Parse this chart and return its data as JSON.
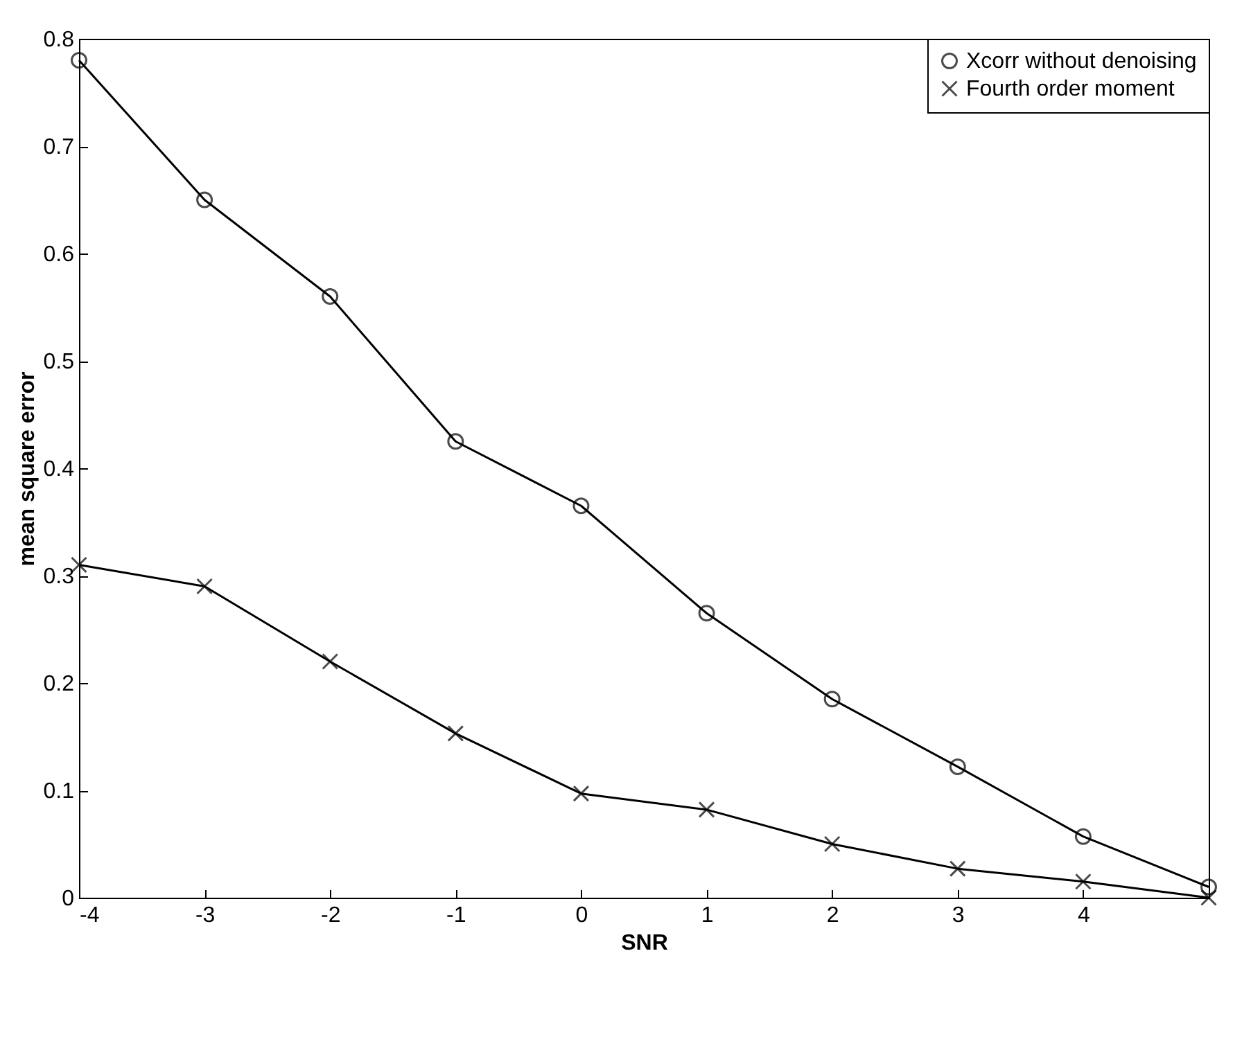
{
  "chart_data": {
    "type": "line",
    "xlabel": "SNR",
    "ylabel": "mean square error",
    "x": [
      -4,
      -3,
      -2,
      -1,
      0,
      1,
      2,
      3,
      4,
      5
    ],
    "series": [
      {
        "name": "Xcorr without denoising",
        "color": "#000000",
        "marker": "circle",
        "values": [
          0.78,
          0.65,
          0.56,
          0.425,
          0.365,
          0.265,
          0.185,
          0.122,
          0.057,
          0.01
        ]
      },
      {
        "name": "Fourth order moment",
        "color": "#000000",
        "marker": "cross",
        "values": [
          0.31,
          0.29,
          0.22,
          0.153,
          0.097,
          0.082,
          0.05,
          0.027,
          0.015,
          0.0
        ]
      }
    ],
    "xlim": [
      -4,
      5
    ],
    "xticks": [
      {
        "value": -4,
        "label": "-4"
      },
      {
        "value": -3,
        "label": "-3"
      },
      {
        "value": -2,
        "label": "-2"
      },
      {
        "value": -1,
        "label": "-1"
      },
      0,
      1,
      2,
      3,
      4
    ],
    "ylim": [
      0,
      0.8
    ],
    "yticks": [
      0,
      0.1,
      0.2,
      0.3,
      0.4,
      0.5,
      0.6,
      0.7,
      0.8
    ],
    "grid": false,
    "legend": "top right",
    "line_style": "solid"
  }
}
